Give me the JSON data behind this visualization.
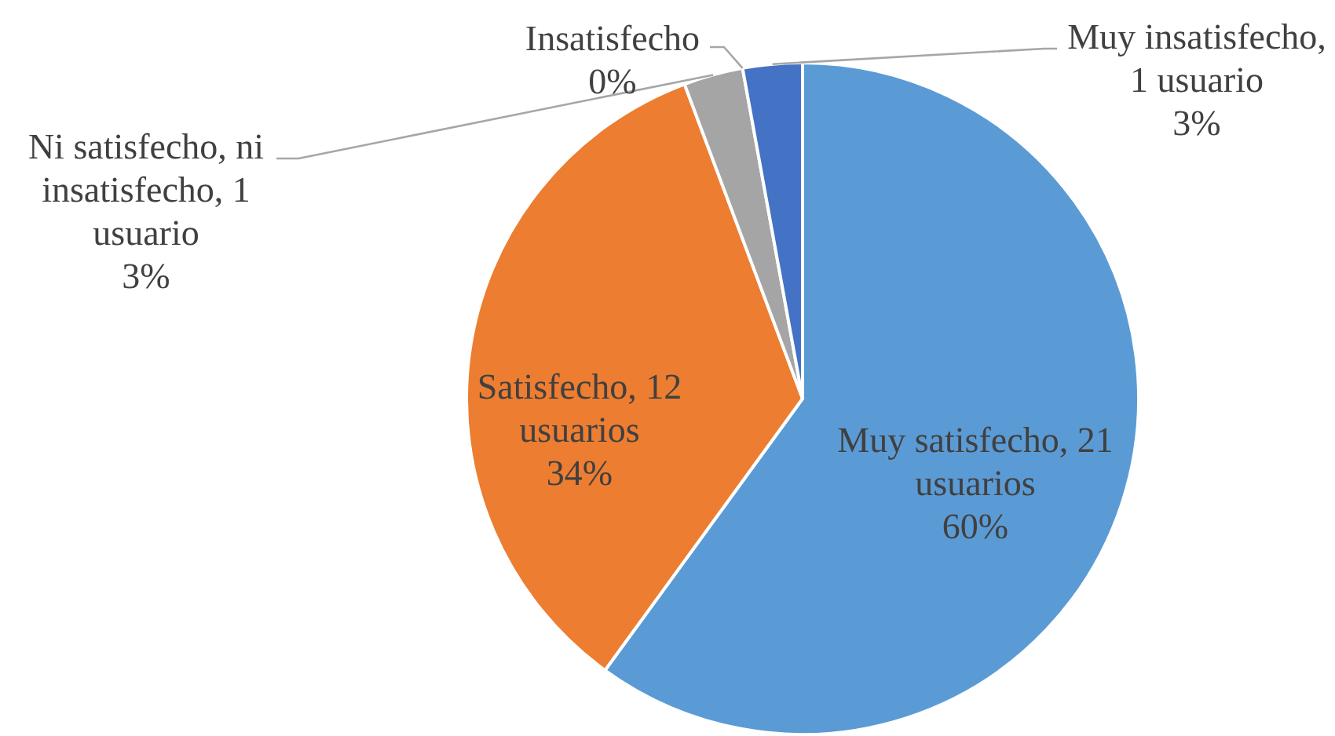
{
  "chart_data": {
    "type": "pie",
    "categories": [
      "Muy satisfecho",
      "Satisfecho",
      "Ni satisfecho, ni insatisfecho",
      "Insatisfecho",
      "Muy insatisfecho"
    ],
    "values": [
      21,
      12,
      1,
      0,
      1
    ],
    "colors": [
      "#5b9bd5",
      "#ed7d31",
      "#a5a5a5",
      "#ffc000",
      "#4472c4"
    ],
    "value_labels": [
      ", 21 usuarios\n60%",
      ", 12 usuarios\n34%",
      ", 1 usuario\n3%",
      "\n0%",
      ", 1 usuario\n3%"
    ]
  }
}
